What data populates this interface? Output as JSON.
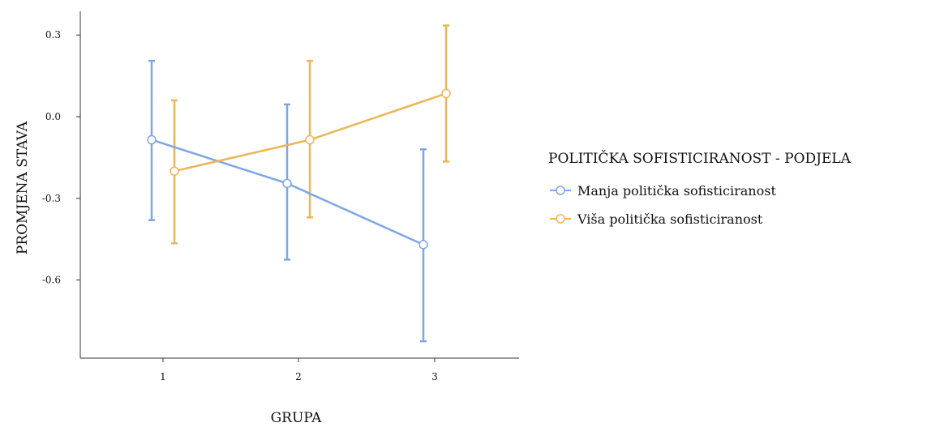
{
  "chart_data": {
    "type": "line",
    "title": "",
    "xlabel": "GRUPA",
    "ylabel": "PROMJENA STAVA",
    "categories": [
      "1",
      "2",
      "3"
    ],
    "ylim": [
      -0.88,
      0.38
    ],
    "yticks": [
      0.3,
      0.0,
      -0.3,
      -0.6
    ],
    "ytick_labels": [
      "0.3",
      "0.0",
      "-0.3",
      "-0.6"
    ],
    "grid": false,
    "error_bars": true,
    "legend": {
      "title": "POLITIČKA SOFISTICIRANOST - PODJELA",
      "placement": "right"
    },
    "series": [
      {
        "name": "Manja politička sofisticiranost",
        "color": "#7ea6e6",
        "values": [
          -0.085,
          -0.245,
          -0.47
        ],
        "ci_low": [
          -0.38,
          -0.525,
          -0.825
        ],
        "ci_high": [
          0.205,
          0.045,
          -0.12
        ]
      },
      {
        "name": "Viša politička sofisticiranost",
        "color": "#ebb655",
        "values": [
          -0.2,
          -0.085,
          0.085
        ],
        "ci_low": [
          -0.465,
          -0.37,
          -0.165
        ],
        "ci_high": [
          0.06,
          0.205,
          0.335
        ]
      }
    ]
  }
}
